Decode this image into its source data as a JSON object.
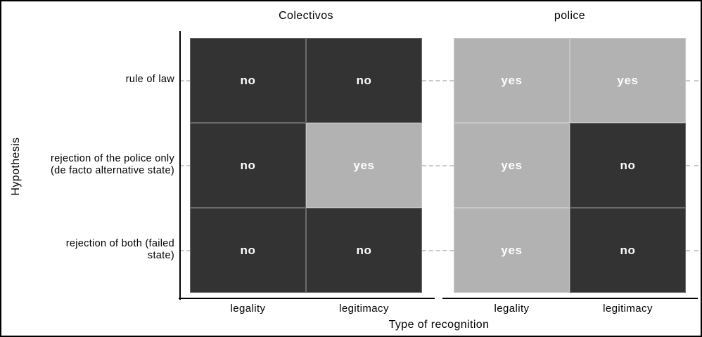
{
  "chart_data": {
    "type": "heatmap",
    "title": "",
    "xlabel": "Type of recognition",
    "ylabel": "Hypothesis",
    "legend": "none",
    "grid": "dashed horizontal stubs at row centers, outside panels only",
    "facets": [
      {
        "label": "Colectivos",
        "columns": [
          "legality",
          "legitimacy"
        ],
        "rows": [
          "rule of law",
          "rejection of the police only (de facto alternative state)",
          "rejection of both (failed state)"
        ],
        "values": [
          [
            "no",
            "no"
          ],
          [
            "no",
            "yes"
          ],
          [
            "no",
            "no"
          ]
        ]
      },
      {
        "label": "police",
        "columns": [
          "legality",
          "legitimacy"
        ],
        "rows": [
          "rule of law",
          "rejection of the police only (de facto alternative state)",
          "rejection of both (failed state)"
        ],
        "values": [
          [
            "yes",
            "yes"
          ],
          [
            "yes",
            "no"
          ],
          [
            "yes",
            "no"
          ]
        ]
      }
    ],
    "row_label_lines": [
      [
        "rule of law"
      ],
      [
        "rejection of the police only",
        "(de facto alternative state)"
      ],
      [
        "rejection of both (failed",
        "state)"
      ]
    ],
    "fill_colors": {
      "no": "#333333",
      "yes": "#b2b2b2"
    },
    "cell_text_color": "#ffffff",
    "axis_line_color": "#000000",
    "gridline_color": "#c9c9c9",
    "frame_color": "#000000"
  }
}
